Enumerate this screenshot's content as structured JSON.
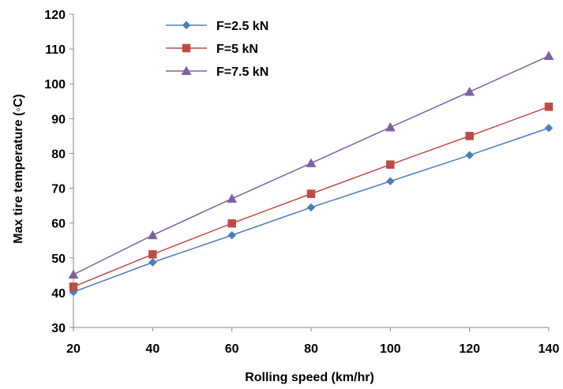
{
  "chart_data": {
    "type": "line",
    "title": "",
    "xlabel": "Rolling speed  (km/hr)",
    "ylabel": "Max tire temperature (◦C)",
    "x": [
      20,
      40,
      60,
      80,
      100,
      120,
      140
    ],
    "xlim": [
      20,
      140
    ],
    "ylim": [
      30,
      120
    ],
    "x_ticks": [
      20,
      40,
      60,
      80,
      100,
      120,
      140
    ],
    "y_ticks": [
      30,
      40,
      50,
      60,
      70,
      80,
      90,
      100,
      110,
      120
    ],
    "grid": false,
    "legend_position": "top-left",
    "series": [
      {
        "name": "F=2.5 kN",
        "values": [
          40.2,
          48.7,
          56.5,
          64.5,
          72.0,
          79.5,
          87.3
        ],
        "color": "#4a7ebb",
        "marker": "diamond"
      },
      {
        "name": "F=5 kN",
        "values": [
          41.7,
          51.0,
          59.9,
          68.4,
          76.8,
          85.0,
          93.4
        ],
        "color": "#be4b48",
        "marker": "square"
      },
      {
        "name": "F=7.5 kN",
        "values": [
          45.2,
          56.5,
          67.0,
          77.2,
          87.5,
          97.7,
          108.0
        ],
        "color": "#7d60a0",
        "marker": "triangle"
      }
    ]
  }
}
